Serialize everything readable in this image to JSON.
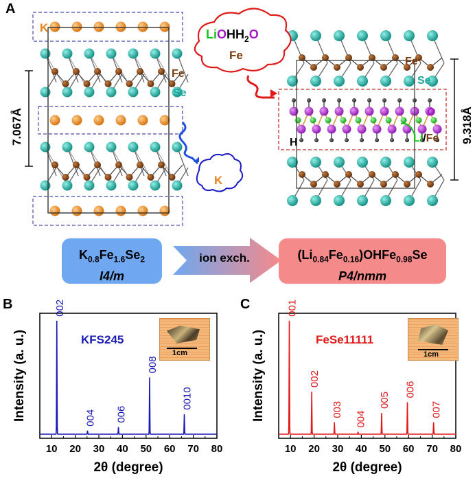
{
  "panels": {
    "a": "A",
    "b": "B",
    "c": "C"
  },
  "structure_left": {
    "k_label": "K",
    "fe_label": "Fe",
    "se_label": "Se",
    "lattice": "7.067Å",
    "released_ion": "K"
  },
  "structure_right": {
    "cloud_text": "LiOHH2O",
    "cloud_fe": "Fe",
    "fe_label": "Fe",
    "se_label": "Se",
    "o_label": "O",
    "h_label": "H",
    "lifefe_label": "Li/Fe",
    "lattice": "9.318Å"
  },
  "reaction": {
    "left_formula": "K0.8Fe1.6Se2",
    "left_group": "I4/m",
    "arrow_label": "ion exch.",
    "right_formula": "(Li0.84Fe0.16)OHFe0.98Se",
    "right_group": "P4/nmm"
  },
  "colors": {
    "potassium": "#e8821a",
    "selenium": "#1aa59a",
    "iron": "#7a3d0f",
    "lithium_fe": "#17c21a",
    "oxygen": "#a517c9",
    "kfs_line": "#1919b4",
    "fese_line": "#e01919",
    "left_box": "#6fa8f0",
    "right_box": "#f58a8a"
  },
  "chart_data": [
    {
      "type": "line",
      "title": "KFS245",
      "xlabel": "2θ (degree)",
      "ylabel": "Intensity (a. u.)",
      "xlim": [
        5,
        80
      ],
      "x_ticks": [
        10,
        20,
        30,
        40,
        50,
        60,
        70,
        80
      ],
      "peaks": [
        {
          "x": 12.2,
          "height": 0.96,
          "label": "002"
        },
        {
          "x": 25.2,
          "height": 0.03,
          "label": "004"
        },
        {
          "x": 38.3,
          "height": 0.06,
          "label": "006"
        },
        {
          "x": 51.5,
          "height": 0.48,
          "label": "008"
        },
        {
          "x": 66.2,
          "height": 0.17,
          "label": "0010"
        }
      ],
      "inset_scale": "1cm"
    },
    {
      "type": "line",
      "title": "FeSe11111",
      "xlabel": "2θ (degree)",
      "ylabel": "Intensity (a. u.)",
      "xlim": [
        5,
        80
      ],
      "x_ticks": [
        10,
        20,
        30,
        40,
        50,
        60,
        70,
        80
      ],
      "peaks": [
        {
          "x": 9.5,
          "height": 0.96,
          "label": "001"
        },
        {
          "x": 19.0,
          "height": 0.36,
          "label": "002"
        },
        {
          "x": 28.6,
          "height": 0.1,
          "label": "003"
        },
        {
          "x": 38.6,
          "height": 0.02,
          "label": "004"
        },
        {
          "x": 48.6,
          "height": 0.18,
          "label": "005"
        },
        {
          "x": 59.5,
          "height": 0.27,
          "label": "006"
        },
        {
          "x": 70.6,
          "height": 0.1,
          "label": "007"
        }
      ],
      "inset_scale": "1cm"
    }
  ]
}
